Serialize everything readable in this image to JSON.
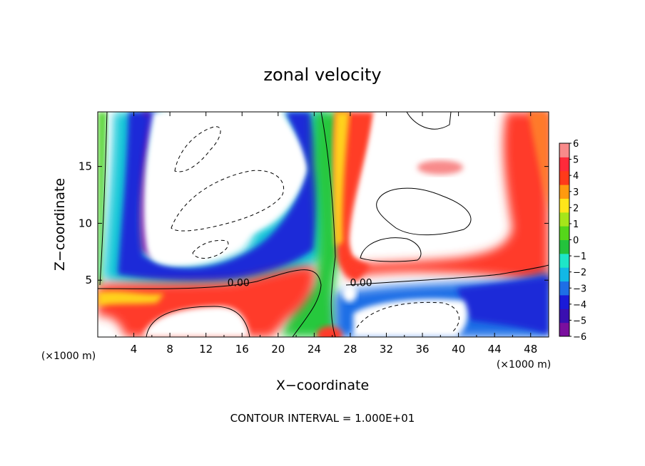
{
  "chart_data": {
    "type": "heatmap",
    "title": "zonal velocity",
    "xlabel": "X−coordinate",
    "ylabel": "Z−coordinate",
    "x_unit": "(×1000 m)",
    "footer": "CONTOUR INTERVAL = 1.000E+01",
    "xlim": [
      0,
      50
    ],
    "ylim": [
      0,
      19.8
    ],
    "x_ticks": [
      "4",
      "8",
      "12",
      "16",
      "20",
      "24",
      "28",
      "32",
      "36",
      "40",
      "44",
      "48"
    ],
    "y_ticks": [
      "5",
      "10",
      "15"
    ],
    "colorbar": {
      "range": [
        -6,
        6
      ],
      "ticks": [
        "6",
        "5",
        "4",
        "3",
        "2",
        "1",
        "0",
        "−1",
        "−2",
        "−3",
        "−4",
        "−5",
        "−6"
      ],
      "colors": [
        "#7a0f9e",
        "#3a0fb0",
        "#1a1ad8",
        "#1e6ee6",
        "#12b8e6",
        "#1ee6c8",
        "#23c23c",
        "#55d61a",
        "#a6e61a",
        "#ffe61a",
        "#ff9a0f",
        "#ff3a1a",
        "#ff2a3a",
        "#f88a8a"
      ]
    },
    "contour_labels": [
      {
        "text": "0.00",
        "x": 15.6,
        "z": 4.6
      },
      {
        "text": "0.00",
        "x": 29.2,
        "z": 4.6
      }
    ]
  }
}
